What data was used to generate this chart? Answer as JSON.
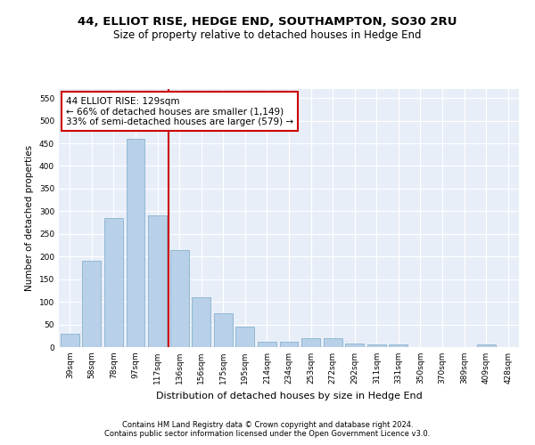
{
  "title": "44, ELLIOT RISE, HEDGE END, SOUTHAMPTON, SO30 2RU",
  "subtitle": "Size of property relative to detached houses in Hedge End",
  "xlabel": "Distribution of detached houses by size in Hedge End",
  "ylabel": "Number of detached properties",
  "categories": [
    "39sqm",
    "58sqm",
    "78sqm",
    "97sqm",
    "117sqm",
    "136sqm",
    "156sqm",
    "175sqm",
    "195sqm",
    "214sqm",
    "234sqm",
    "253sqm",
    "272sqm",
    "292sqm",
    "311sqm",
    "331sqm",
    "350sqm",
    "370sqm",
    "389sqm",
    "409sqm",
    "428sqm"
  ],
  "values": [
    30,
    190,
    285,
    460,
    290,
    215,
    110,
    75,
    46,
    12,
    12,
    20,
    20,
    8,
    5,
    5,
    0,
    0,
    0,
    5,
    0
  ],
  "bar_color": "#b8d0e8",
  "bar_edge_color": "#7aaac8",
  "vline_x": 4.5,
  "annotation_text": "44 ELLIOT RISE: 129sqm\n← 66% of detached houses are smaller (1,149)\n33% of semi-detached houses are larger (579) →",
  "annotation_box_color": "#ffffff",
  "annotation_box_edge": "#cc0000",
  "vline_color": "#cc0000",
  "ylim": [
    0,
    570
  ],
  "yticks": [
    0,
    50,
    100,
    150,
    200,
    250,
    300,
    350,
    400,
    450,
    500,
    550
  ],
  "bg_color": "#e8eef8",
  "footer_line1": "Contains HM Land Registry data © Crown copyright and database right 2024.",
  "footer_line2": "Contains public sector information licensed under the Open Government Licence v3.0.",
  "title_fontsize": 9.5,
  "subtitle_fontsize": 8.5,
  "xlabel_fontsize": 8,
  "ylabel_fontsize": 7.5,
  "tick_fontsize": 6.5,
  "annotation_fontsize": 7.5,
  "footer_fontsize": 6
}
